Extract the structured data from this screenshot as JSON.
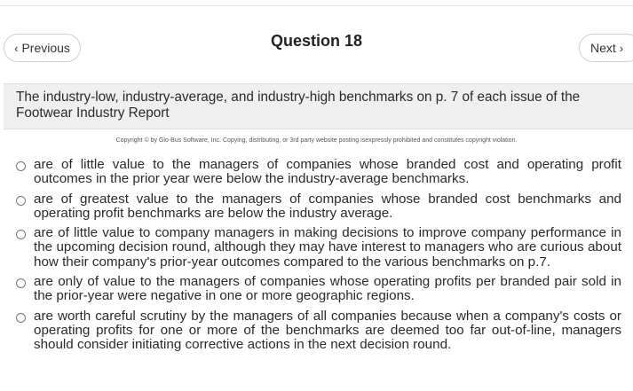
{
  "nav": {
    "previous_label": "Previous",
    "next_label": "Next",
    "previous_icon": "chevron-left-icon",
    "next_icon": "chevron-right-icon"
  },
  "question": {
    "title": "Question 18",
    "stem": "The industry-low, industry-average, and industry-high benchmarks on p. 7 of each issue of the Footwear Industry Report"
  },
  "copyright": "Copyright © by Glo-Bus Software, Inc. Copying, distributing, or 3rd party website posting isexpressly prohibited and constitutes copyright violation.",
  "options": [
    {
      "text": "are of little value to the managers of companies whose branded cost and operating profit outcomes in the prior year were below the industry-average benchmarks.",
      "selected": false
    },
    {
      "text": "are of greatest value to the managers of companies whose branded cost benchmarks and operating profit benchmarks are below the industry average.",
      "selected": false
    },
    {
      "text": "are of little value to company managers in making decisions to improve company performance in the upcoming decision round, although they may have interest to managers who are curious about how their company's prior-year outcomes compared to the various benchmarks on p.7.",
      "selected": false
    },
    {
      "text": "are only of value to the managers of companies whose operating profits per branded pair sold in the prior-year were negative in one or more geographic regions.",
      "selected": false
    },
    {
      "text": "are worth careful scrutiny by the managers of all companies because when a company's costs or operating profits for one or more of the benchmarks are deemed too far out-of-line, managers should consider initiating corrective actions in the next decision round.",
      "selected": false
    }
  ]
}
